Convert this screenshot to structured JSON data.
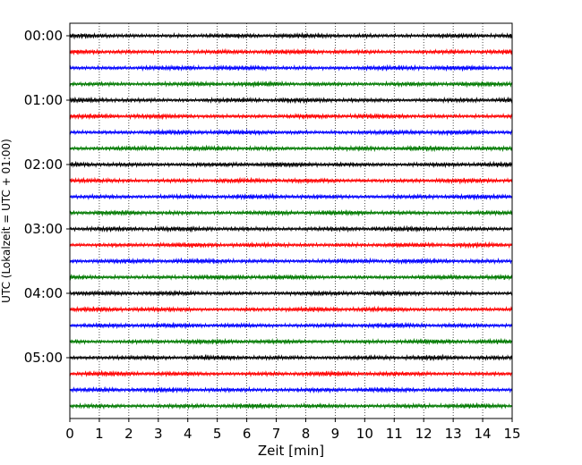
{
  "chart_data": {
    "type": "line",
    "xlabel": "Zeit  [min]",
    "ylabel": "UTC (Lokalzeit = UTC + 01:00)",
    "xlim": [
      0,
      15
    ],
    "x_ticks": [
      "0",
      "1",
      "2",
      "3",
      "4",
      "5",
      "6",
      "7",
      "8",
      "9",
      "10",
      "11",
      "12",
      "13",
      "14",
      "15"
    ],
    "y_tick_labels": [
      "00:00",
      "01:00",
      "02:00",
      "03:00",
      "04:00",
      "05:00"
    ],
    "traces_per_hour": 4,
    "trace_start_minutes": [
      0,
      15,
      30,
      45,
      60,
      75,
      90,
      105,
      120,
      135,
      150,
      165,
      180,
      195,
      210,
      225,
      240,
      255,
      270,
      285,
      300,
      315,
      330,
      345
    ],
    "trace_colors": [
      "#000000",
      "#ff0000",
      "#0000ff",
      "#007a00"
    ],
    "grid": "vertical-dotted"
  }
}
